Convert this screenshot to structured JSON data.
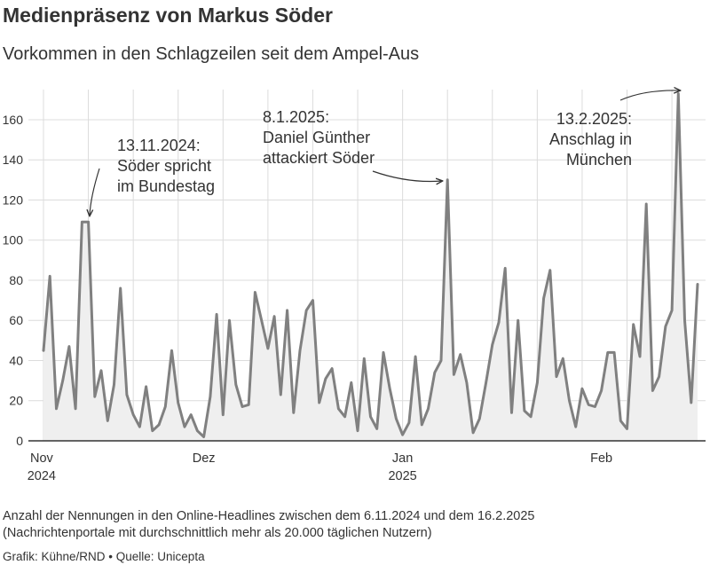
{
  "header": {
    "title": "Medienpräsenz von Markus Söder",
    "subtitle": "Vorkommen in den Schlagzeilen seit dem Ampel-Aus"
  },
  "footer": {
    "note_line1": "Anzahl der Nennungen in den Online-Headlines zwischen dem 6.11.2024 und dem 16.2.2025",
    "note_line2": "(Nachrichtenportale mit durchschnittlich mehr als 20.000 täglichen Nutzern)",
    "credit": "Grafik: Kühne/RND • Quelle: Unicepta"
  },
  "colors": {
    "line": "#808080",
    "area": "#efefef",
    "grid": "#dcdcdc",
    "text": "#333333"
  },
  "chart_data": {
    "type": "area",
    "start_date": "2024-11-06",
    "end_date": "2025-02-16",
    "ylim": [
      0,
      175
    ],
    "yticks": [
      0,
      20,
      40,
      60,
      80,
      100,
      120,
      140,
      160
    ],
    "grid": true,
    "x_tick_labels": [
      {
        "date": "2024-11-01",
        "line1": "Nov",
        "line2": "2024"
      },
      {
        "date": "2024-12-01",
        "line1": "Dez",
        "line2": ""
      },
      {
        "date": "2025-01-01",
        "line1": "Jan",
        "line2": "2025"
      },
      {
        "date": "2025-02-01",
        "line1": "Feb",
        "line2": ""
      }
    ],
    "values": [
      45,
      82,
      16,
      30,
      47,
      16,
      109,
      109,
      22,
      35,
      10,
      28,
      76,
      23,
      13,
      7,
      27,
      5,
      8,
      17,
      45,
      19,
      7,
      13,
      5,
      2,
      22,
      63,
      13,
      60,
      28,
      17,
      18,
      74,
      60,
      46,
      62,
      23,
      65,
      14,
      45,
      65,
      70,
      19,
      31,
      36,
      16,
      12,
      29,
      5,
      41,
      12,
      6,
      44,
      26,
      11,
      3,
      9,
      42,
      8,
      16,
      34,
      40,
      130,
      33,
      43,
      29,
      4,
      11,
      29,
      48,
      59,
      86,
      14,
      60,
      15,
      12,
      29,
      71,
      85,
      32,
      41,
      20,
      7,
      26,
      18,
      17,
      25,
      44,
      44,
      10,
      6,
      58,
      42,
      118,
      25,
      32,
      57,
      65,
      173,
      60,
      19,
      78
    ],
    "annotations": [
      {
        "date": "2024-11-13",
        "lines": [
          "13.11.2024:",
          "Söder spricht",
          "im Bundestag"
        ]
      },
      {
        "date": "2025-01-08",
        "lines": [
          "8.1.2025:",
          "Daniel Günther",
          "attackiert Söder"
        ]
      },
      {
        "date": "2025-02-13",
        "lines": [
          "13.2.2025:",
          "Anschlag in",
          "München"
        ]
      }
    ]
  }
}
